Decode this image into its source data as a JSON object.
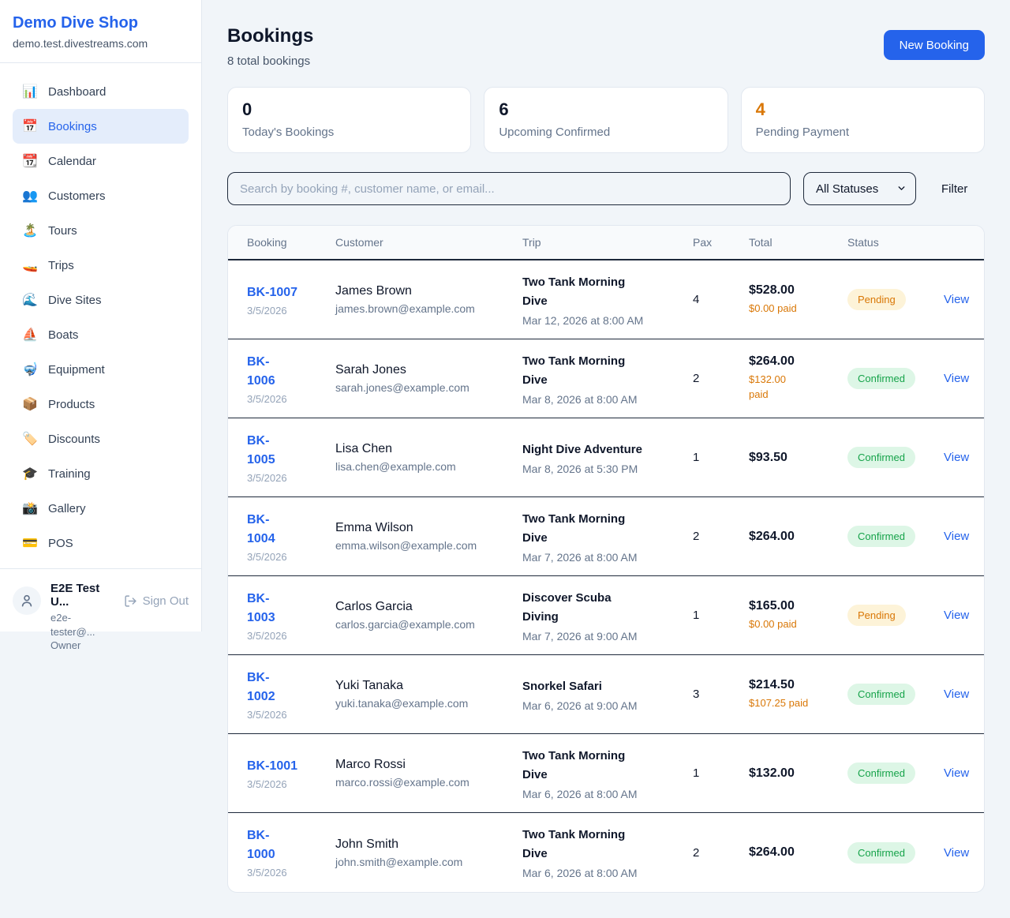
{
  "sidebar": {
    "brand": "Demo Dive Shop",
    "domain": "demo.test.divestreams.com",
    "items": [
      {
        "name": "dashboard",
        "icon": "📊",
        "label": "Dashboard",
        "active": false
      },
      {
        "name": "bookings",
        "icon": "📅",
        "label": "Bookings",
        "active": true
      },
      {
        "name": "calendar",
        "icon": "📆",
        "label": "Calendar",
        "active": false
      },
      {
        "name": "customers",
        "icon": "👥",
        "label": "Customers",
        "active": false
      },
      {
        "name": "tours",
        "icon": "🏝️",
        "label": "Tours",
        "active": false
      },
      {
        "name": "trips",
        "icon": "🚤",
        "label": "Trips",
        "active": false
      },
      {
        "name": "dive-sites",
        "icon": "🌊",
        "label": "Dive Sites",
        "active": false
      },
      {
        "name": "boats",
        "icon": "⛵",
        "label": "Boats",
        "active": false
      },
      {
        "name": "equipment",
        "icon": "🤿",
        "label": "Equipment",
        "active": false
      },
      {
        "name": "products",
        "icon": "📦",
        "label": "Products",
        "active": false
      },
      {
        "name": "discounts",
        "icon": "🏷️",
        "label": "Discounts",
        "active": false
      },
      {
        "name": "training",
        "icon": "🎓",
        "label": "Training",
        "active": false
      },
      {
        "name": "gallery",
        "icon": "📸",
        "label": "Gallery",
        "active": false
      },
      {
        "name": "pos",
        "icon": "💳",
        "label": "POS",
        "active": false
      }
    ],
    "user": {
      "name": "E2E Test U...",
      "email": "e2e-tester@...",
      "role": "Owner",
      "sign_out_label": "Sign Out"
    }
  },
  "header": {
    "title": "Bookings",
    "subtitle": "8 total bookings",
    "new_booking_label": "New Booking"
  },
  "stats": [
    {
      "value": "0",
      "label": "Today's Bookings",
      "color": "#0f172a"
    },
    {
      "value": "6",
      "label": "Upcoming Confirmed",
      "color": "#0f172a"
    },
    {
      "value": "4",
      "label": "Pending Payment",
      "color": "#d97706"
    }
  ],
  "controls": {
    "search_placeholder": "Search by booking #, customer name, or email...",
    "status_filter_value": "All Statuses",
    "filter_label": "Filter"
  },
  "table": {
    "columns": [
      "Booking",
      "Customer",
      "Trip",
      "Pax",
      "Total",
      "Status"
    ],
    "view_label": "View",
    "rows": [
      {
        "id": "BK-1007",
        "id_wrapped": false,
        "date": "3/5/2026",
        "customer_name": "James Brown",
        "customer_email": "james.brown@example.com",
        "trip_name": "Two Tank Morning Dive",
        "trip_wrapped": true,
        "trip_datetime": "Mar 12, 2026 at 8:00 AM",
        "pax": "4",
        "total": "$528.00",
        "paid": "$0.00 paid",
        "paid_wrapped": false,
        "status": "Pending"
      },
      {
        "id": "BK-1006",
        "id_wrapped": true,
        "date": "3/5/2026",
        "customer_name": "Sarah Jones",
        "customer_email": "sarah.jones@example.com",
        "trip_name": "Two Tank Morning Dive",
        "trip_wrapped": true,
        "trip_datetime": "Mar 8, 2026 at 8:00 AM",
        "pax": "2",
        "total": "$264.00",
        "paid": "$132.00 paid",
        "paid_wrapped": true,
        "status": "Confirmed"
      },
      {
        "id": "BK-1005",
        "id_wrapped": true,
        "date": "3/5/2026",
        "customer_name": "Lisa Chen",
        "customer_email": "lisa.chen@example.com",
        "trip_name": "Night Dive Adventure",
        "trip_wrapped": false,
        "trip_datetime": "Mar 8, 2026 at 5:30 PM",
        "pax": "1",
        "total": "$93.50",
        "paid": null,
        "paid_wrapped": false,
        "status": "Confirmed"
      },
      {
        "id": "BK-1004",
        "id_wrapped": true,
        "date": "3/5/2026",
        "customer_name": "Emma Wilson",
        "customer_email": "emma.wilson@example.com",
        "trip_name": "Two Tank Morning Dive",
        "trip_wrapped": true,
        "trip_datetime": "Mar 7, 2026 at 8:00 AM",
        "pax": "2",
        "total": "$264.00",
        "paid": null,
        "paid_wrapped": false,
        "status": "Confirmed"
      },
      {
        "id": "BK-1003",
        "id_wrapped": true,
        "date": "3/5/2026",
        "customer_name": "Carlos Garcia",
        "customer_email": "carlos.garcia@example.com",
        "trip_name": "Discover Scuba Diving",
        "trip_wrapped": true,
        "trip_datetime": "Mar 7, 2026 at 9:00 AM",
        "pax": "1",
        "total": "$165.00",
        "paid": "$0.00 paid",
        "paid_wrapped": false,
        "status": "Pending"
      },
      {
        "id": "BK-1002",
        "id_wrapped": true,
        "date": "3/5/2026",
        "customer_name": "Yuki Tanaka",
        "customer_email": "yuki.tanaka@example.com",
        "trip_name": "Snorkel Safari",
        "trip_wrapped": false,
        "trip_datetime": "Mar 6, 2026 at 9:00 AM",
        "pax": "3",
        "total": "$214.50",
        "paid": "$107.25 paid",
        "paid_wrapped": false,
        "status": "Confirmed"
      },
      {
        "id": "BK-1001",
        "id_wrapped": false,
        "date": "3/5/2026",
        "customer_name": "Marco Rossi",
        "customer_email": "marco.rossi@example.com",
        "trip_name": "Two Tank Morning Dive",
        "trip_wrapped": true,
        "trip_datetime": "Mar 6, 2026 at 8:00 AM",
        "pax": "1",
        "total": "$132.00",
        "paid": null,
        "paid_wrapped": false,
        "status": "Confirmed"
      },
      {
        "id": "BK-1000",
        "id_wrapped": true,
        "date": "3/5/2026",
        "customer_name": "John Smith",
        "customer_email": "john.smith@example.com",
        "trip_name": "Two Tank Morning Dive",
        "trip_wrapped": true,
        "trip_datetime": "Mar 6, 2026 at 8:00 AM",
        "pax": "2",
        "total": "$264.00",
        "paid": null,
        "paid_wrapped": false,
        "status": "Confirmed"
      }
    ]
  },
  "status_styles": {
    "Pending": {
      "text": "#d97706",
      "bg": "#fdf3d8"
    },
    "Confirmed": {
      "text": "#16a34a",
      "bg": "#ddf6e6"
    }
  }
}
